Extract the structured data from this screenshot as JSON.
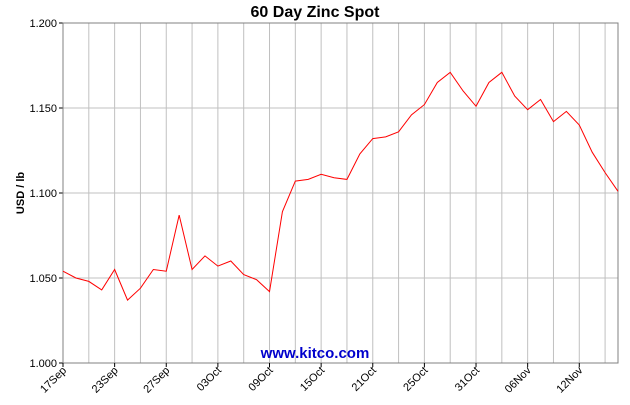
{
  "chart_data": {
    "type": "line",
    "title": "60 Day Zinc Spot",
    "y_label": "USD / lb",
    "annotation": "www.kitco.com",
    "categories": [
      "17Sep",
      null,
      null,
      null,
      "23Sep",
      null,
      null,
      null,
      "27Sep",
      null,
      null,
      null,
      "03Oct",
      null,
      null,
      null,
      "09Oct",
      null,
      null,
      null,
      "15Oct",
      null,
      null,
      null,
      "21Oct",
      null,
      null,
      null,
      "25Oct",
      null,
      null,
      null,
      "31Oct",
      null,
      null,
      null,
      "06Nov",
      null,
      null,
      null,
      "12Nov",
      null,
      null,
      null
    ],
    "series": [
      {
        "name": "Zinc",
        "color": "#ff0000",
        "values": [
          1.054,
          1.05,
          1.048,
          1.043,
          1.055,
          1.037,
          1.044,
          1.055,
          1.054,
          1.087,
          1.055,
          1.063,
          1.057,
          1.06,
          1.052,
          1.049,
          1.042,
          1.089,
          1.107,
          1.108,
          1.111,
          1.109,
          1.108,
          1.123,
          1.132,
          1.133,
          1.136,
          1.146,
          1.152,
          1.165,
          1.171,
          1.16,
          1.151,
          1.165,
          1.171,
          1.157,
          1.149,
          1.155,
          1.142,
          1.148,
          1.14,
          1.124,
          1.112,
          1.101
        ]
      }
    ],
    "ylim": [
      1.0,
      1.2
    ],
    "yticks": [
      {
        "value": 1.0,
        "label": "1.000"
      },
      {
        "value": 1.05,
        "label": "1.050"
      },
      {
        "value": 1.1,
        "label": "1.100"
      },
      {
        "value": 1.15,
        "label": "1.150"
      },
      {
        "value": 1.2,
        "label": "1.200"
      }
    ],
    "grid": true
  }
}
